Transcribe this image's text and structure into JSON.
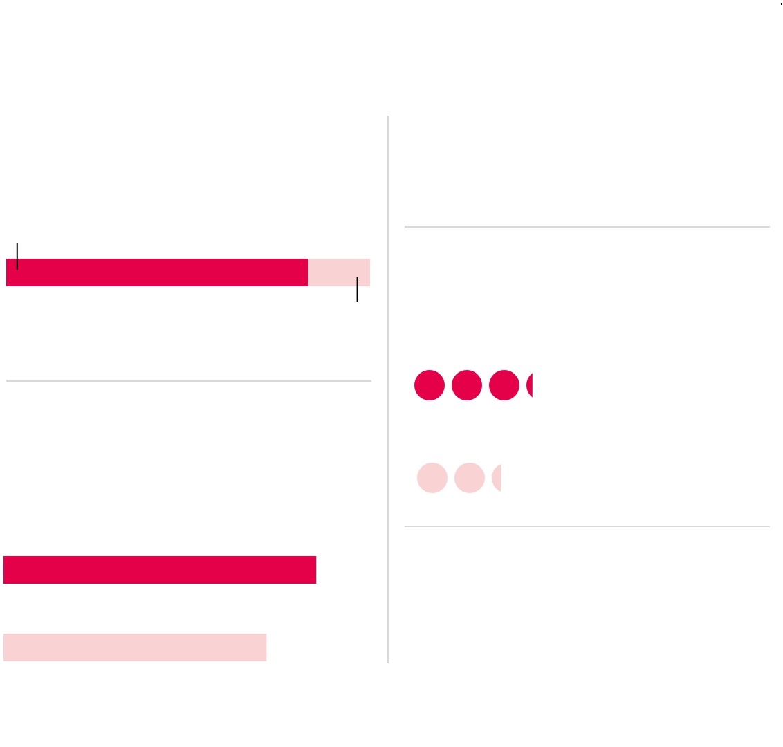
{
  "colors": {
    "primary": "#e5004a",
    "secondary": "#f9d3d3",
    "divider": "#d9d9d9",
    "marker": "#000000"
  },
  "chart_data": [
    {
      "type": "bar",
      "orientation": "horizontal",
      "stacked": true,
      "title": "",
      "segments": [
        {
          "series": "primary",
          "value": 83
        },
        {
          "series": "secondary",
          "value": 17
        }
      ],
      "total": 100,
      "markers": [
        {
          "value": 3,
          "side": "above"
        },
        {
          "value": 96.5,
          "side": "below"
        }
      ]
    },
    {
      "type": "bar",
      "orientation": "horizontal",
      "title": "",
      "series": [
        {
          "color": "primary",
          "values": [
            85
          ]
        },
        {
          "color": "secondary",
          "values": [
            71.5
          ]
        }
      ],
      "xlim": [
        0,
        100
      ]
    },
    {
      "type": "pictogram",
      "title": "",
      "series": [
        {
          "color": "primary",
          "value": 3.2
        },
        {
          "color": "secondary",
          "value": 2.3
        }
      ]
    }
  ]
}
